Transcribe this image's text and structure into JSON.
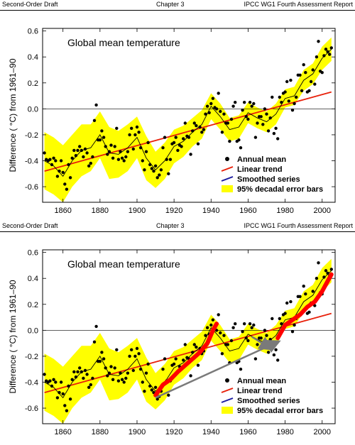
{
  "header": {
    "left": "Second-Order Draft",
    "center": "Chapter 3",
    "right": "IPCC WG1 Fourth Assessment Report"
  },
  "colors": {
    "error_band": "#ffff00",
    "trend_line": "#e8200a",
    "smoothed_series": "#1a1aa0",
    "annotation_overlay": "#ff0000",
    "annotation_arrow": "#7a7a7a",
    "points": "#000000"
  },
  "chart_data": [
    {
      "type": "scatter",
      "title": "Global mean temperature",
      "xlabel": "",
      "ylabel": "Difference ( °C) from 1961–90",
      "xlim": [
        1849,
        2007
      ],
      "ylim": [
        -0.72,
        0.62
      ],
      "xticks": [
        1860,
        1880,
        1900,
        1920,
        1940,
        1960,
        1980,
        2000
      ],
      "yticks": [
        -0.6,
        -0.4,
        -0.2,
        0.0,
        0.2,
        0.4,
        0.6
      ],
      "legend": [
        {
          "label": "Annual mean",
          "marker": "dot"
        },
        {
          "label": "Linear trend",
          "marker": "line"
        },
        {
          "label": "Smoothed series",
          "marker": "line"
        },
        {
          "label": "95% decadal error bars",
          "marker": "box"
        }
      ],
      "legend_position": "bottom-right",
      "series": [
        {
          "name": "Annual mean",
          "x": [
            1850,
            1851,
            1852,
            1853,
            1854,
            1855,
            1856,
            1857,
            1858,
            1859,
            1860,
            1861,
            1862,
            1863,
            1864,
            1865,
            1866,
            1867,
            1868,
            1869,
            1870,
            1871,
            1872,
            1873,
            1874,
            1875,
            1876,
            1877,
            1878,
            1879,
            1880,
            1881,
            1882,
            1883,
            1884,
            1885,
            1886,
            1887,
            1888,
            1889,
            1890,
            1891,
            1892,
            1893,
            1894,
            1895,
            1896,
            1897,
            1898,
            1899,
            1900,
            1901,
            1902,
            1903,
            1904,
            1905,
            1906,
            1907,
            1908,
            1909,
            1910,
            1911,
            1912,
            1913,
            1914,
            1915,
            1916,
            1917,
            1918,
            1919,
            1920,
            1921,
            1922,
            1923,
            1924,
            1925,
            1926,
            1927,
            1928,
            1929,
            1930,
            1931,
            1932,
            1933,
            1934,
            1935,
            1936,
            1937,
            1938,
            1939,
            1940,
            1941,
            1942,
            1943,
            1944,
            1945,
            1946,
            1947,
            1948,
            1949,
            1950,
            1951,
            1952,
            1953,
            1954,
            1955,
            1956,
            1957,
            1958,
            1959,
            1960,
            1961,
            1962,
            1963,
            1964,
            1965,
            1966,
            1967,
            1968,
            1969,
            1970,
            1971,
            1972,
            1973,
            1974,
            1975,
            1976,
            1977,
            1978,
            1979,
            1980,
            1981,
            1982,
            1983,
            1984,
            1985,
            1986,
            1987,
            1988,
            1989,
            1990,
            1991,
            1992,
            1993,
            1994,
            1995,
            1996,
            1997,
            1998,
            1999,
            2000,
            2001,
            2002,
            2003,
            2004,
            2005
          ],
          "y": [
            -0.34,
            -0.39,
            -0.4,
            -0.39,
            -0.43,
            -0.38,
            -0.4,
            -0.52,
            -0.48,
            -0.4,
            -0.49,
            -0.58,
            -0.62,
            -0.43,
            -0.53,
            -0.38,
            -0.32,
            -0.36,
            -0.32,
            -0.29,
            -0.32,
            -0.37,
            -0.31,
            -0.34,
            -0.44,
            -0.42,
            -0.37,
            -0.09,
            0.03,
            -0.24,
            -0.24,
            -0.17,
            -0.22,
            -0.29,
            -0.35,
            -0.33,
            -0.28,
            -0.38,
            -0.29,
            -0.15,
            -0.39,
            -0.33,
            -0.38,
            -0.4,
            -0.37,
            -0.33,
            -0.2,
            -0.15,
            -0.31,
            -0.2,
            -0.14,
            -0.18,
            -0.3,
            -0.4,
            -0.47,
            -0.33,
            -0.26,
            -0.43,
            -0.46,
            -0.48,
            -0.44,
            -0.53,
            -0.51,
            -0.47,
            -0.3,
            -0.22,
            -0.39,
            -0.5,
            -0.39,
            -0.27,
            -0.26,
            -0.22,
            -0.32,
            -0.28,
            -0.29,
            -0.23,
            -0.11,
            -0.21,
            -0.22,
            -0.35,
            -0.17,
            -0.11,
            -0.13,
            -0.27,
            -0.14,
            -0.18,
            -0.16,
            -0.04,
            0.02,
            -0.03,
            0.04,
            0.08,
            0.01,
            0.0,
            0.12,
            -0.02,
            -0.18,
            -0.04,
            -0.11,
            -0.11,
            -0.25,
            -0.08,
            0.02,
            0.05,
            -0.25,
            -0.24,
            -0.3,
            -0.01,
            0.05,
            -0.06,
            -0.08,
            0.05,
            0.02,
            0.04,
            -0.22,
            -0.11,
            -0.06,
            -0.06,
            -0.12,
            0.0,
            -0.04,
            -0.17,
            -0.07,
            0.09,
            -0.19,
            -0.15,
            -0.23,
            0.09,
            0.05,
            0.12,
            0.13,
            0.21,
            0.06,
            0.22,
            -0.01,
            0.04,
            0.09,
            0.26,
            0.26,
            0.14,
            0.34,
            0.28,
            0.13,
            0.14,
            0.21,
            0.3,
            0.19,
            0.4,
            0.52,
            0.29,
            0.28,
            0.41,
            0.46,
            0.44,
            0.42,
            0.47
          ]
        },
        {
          "name": "Linear trend",
          "x": [
            1850,
            2005
          ],
          "y": [
            -0.48,
            0.13
          ]
        },
        {
          "name": "Smoothed series",
          "x": [
            1850,
            1855,
            1860,
            1865,
            1870,
            1875,
            1880,
            1885,
            1890,
            1895,
            1900,
            1905,
            1910,
            1915,
            1920,
            1925,
            1930,
            1935,
            1940,
            1945,
            1950,
            1955,
            1960,
            1965,
            1970,
            1975,
            1980,
            1985,
            1990,
            1995,
            2000,
            2005
          ],
          "y": [
            -0.4,
            -0.44,
            -0.52,
            -0.4,
            -0.32,
            -0.3,
            -0.2,
            -0.34,
            -0.35,
            -0.3,
            -0.22,
            -0.38,
            -0.47,
            -0.4,
            -0.29,
            -0.25,
            -0.18,
            -0.12,
            0.02,
            -0.06,
            -0.16,
            -0.14,
            -0.03,
            -0.07,
            -0.1,
            -0.04,
            0.08,
            0.1,
            0.22,
            0.27,
            0.39,
            0.46
          ]
        },
        {
          "name": "95% decadal error bars",
          "x": [
            1850,
            1855,
            1860,
            1865,
            1870,
            1875,
            1880,
            1885,
            1890,
            1895,
            1900,
            1905,
            1910,
            1915,
            1920,
            1925,
            1930,
            1935,
            1940,
            1945,
            1950,
            1955,
            1960,
            1965,
            1970,
            1975,
            1980,
            1985,
            1990,
            1995,
            2000,
            2005
          ],
          "upper": [
            -0.18,
            -0.22,
            -0.28,
            -0.2,
            -0.12,
            -0.12,
            -0.02,
            -0.14,
            -0.17,
            -0.12,
            -0.06,
            -0.21,
            -0.33,
            -0.26,
            -0.16,
            -0.13,
            -0.07,
            -0.01,
            0.12,
            0.04,
            -0.07,
            -0.05,
            0.05,
            0.01,
            -0.02,
            0.04,
            0.15,
            0.17,
            0.3,
            0.35,
            0.48,
            0.55
          ],
          "lower": [
            -0.62,
            -0.66,
            -0.72,
            -0.6,
            -0.52,
            -0.48,
            -0.38,
            -0.54,
            -0.53,
            -0.48,
            -0.38,
            -0.55,
            -0.61,
            -0.54,
            -0.42,
            -0.37,
            -0.29,
            -0.23,
            -0.08,
            -0.16,
            -0.25,
            -0.23,
            -0.11,
            -0.15,
            -0.18,
            -0.12,
            0.01,
            0.03,
            0.14,
            0.19,
            0.3,
            0.37
          ]
        }
      ]
    },
    {
      "type": "scatter",
      "title": "Global mean temperature",
      "xlabel": "",
      "ylabel": "Difference ( °C) from 1961–90",
      "xlim": [
        1849,
        2007
      ],
      "ylim": [
        -0.72,
        0.62
      ],
      "xticks": [
        1860,
        1880,
        1900,
        1920,
        1940,
        1960,
        1980,
        2000
      ],
      "yticks": [
        -0.6,
        -0.4,
        -0.2,
        0.0,
        0.2,
        0.4,
        0.6
      ],
      "legend": [
        {
          "label": "Annual mean",
          "marker": "dot"
        },
        {
          "label": "Linear trend",
          "marker": "line"
        },
        {
          "label": "Smoothed series",
          "marker": "line"
        },
        {
          "label": "95% decadal error bars",
          "marker": "box"
        }
      ],
      "legend_position": "bottom-right",
      "same_data_as_panel": 0,
      "overlay": {
        "red_segments": [
          {
            "x": [
              1910,
              1914,
              1918,
              1922,
              1926,
              1930,
              1934,
              1938,
              1941,
              1943
            ],
            "y": [
              -0.5,
              -0.42,
              -0.38,
              -0.32,
              -0.27,
              -0.22,
              -0.17,
              -0.1,
              0.0,
              0.05
            ]
          },
          {
            "x": [
              1976,
              1980,
              1984,
              1988,
              1992,
              1996,
              2000,
              2003,
              2005
            ],
            "y": [
              -0.06,
              0.04,
              0.08,
              0.12,
              0.18,
              0.22,
              0.3,
              0.38,
              0.43
            ]
          }
        ],
        "gray_arrows": [
          {
            "x": [
              1910,
              1976
            ],
            "y": [
              -0.52,
              -0.09
            ]
          },
          {
            "x": [
              1962,
              1972
            ],
            "y": [
              -0.05,
              -0.14
            ]
          }
        ]
      }
    }
  ]
}
